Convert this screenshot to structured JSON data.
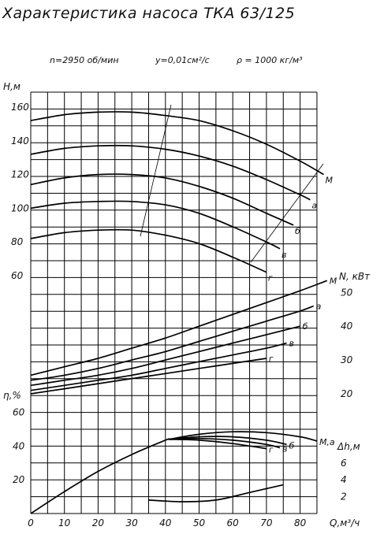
{
  "header": {
    "title": "Характеристика насоса ТКА 63/125",
    "speed": "n=2950 об/мин",
    "viscosity": "у=0,01см²/с",
    "density": "ρ = 1000 кг/м³"
  },
  "chart_data": {
    "type": "line",
    "xlabel": "Q,м³/ч",
    "x_ticks": [
      "0",
      "10",
      "20",
      "30",
      "40",
      "50",
      "60",
      "70",
      "80"
    ],
    "xlim": [
      0,
      102
    ],
    "grid": true,
    "axes": {
      "H": {
        "label": "Н,м",
        "ticks": [
          "60",
          "80",
          "100",
          "120",
          "140",
          "160"
        ],
        "lim": [
          60,
          160
        ]
      },
      "N": {
        "label": "N, кВт",
        "ticks": [
          "20",
          "30",
          "40",
          "50"
        ],
        "lim": [
          20,
          50
        ]
      },
      "eta": {
        "label": "η,%",
        "ticks": [
          "20",
          "40",
          "60"
        ],
        "lim": [
          0,
          60
        ]
      },
      "dh": {
        "label": "Δh,м",
        "ticks": [
          "2",
          "4",
          "6"
        ],
        "lim": [
          0,
          8
        ]
      }
    },
    "head_curves": [
      {
        "name": "М",
        "x": [
          0,
          10,
          20,
          30,
          40,
          50,
          60,
          70,
          80,
          87
        ],
        "y": [
          152,
          155.5,
          157,
          157,
          155,
          152,
          146,
          138,
          128,
          120
        ]
      },
      {
        "name": "а",
        "x": [
          0,
          10,
          20,
          30,
          40,
          50,
          60,
          70,
          80,
          83
        ],
        "y": [
          132,
          135.5,
          137,
          137,
          135,
          131,
          125,
          117,
          108,
          105
        ]
      },
      {
        "name": "б",
        "x": [
          0,
          10,
          20,
          30,
          40,
          50,
          60,
          70,
          78
        ],
        "y": [
          114,
          118,
          120,
          120,
          118,
          113,
          106,
          97,
          90
        ]
      },
      {
        "name": "в",
        "x": [
          0,
          10,
          20,
          30,
          40,
          50,
          60,
          70,
          74
        ],
        "y": [
          100,
          103,
          104,
          104,
          102,
          97,
          89,
          80,
          76
        ]
      },
      {
        "name": "г",
        "x": [
          0,
          10,
          20,
          30,
          40,
          50,
          60,
          70
        ],
        "y": [
          82,
          85.5,
          87,
          87,
          84,
          79,
          71,
          62
        ]
      }
    ],
    "power_curves": [
      {
        "name": "М",
        "x": [
          0,
          10,
          20,
          30,
          40,
          50,
          60,
          70,
          80,
          88
        ],
        "y": [
          25.5,
          28,
          30.5,
          33.5,
          36.5,
          40,
          43.5,
          47,
          50.5,
          53.5
        ]
      },
      {
        "name": "а",
        "x": [
          0,
          10,
          20,
          30,
          40,
          50,
          60,
          70,
          80,
          84
        ],
        "y": [
          24,
          25.5,
          27.5,
          30,
          32.5,
          35.5,
          38.5,
          41.5,
          44.5,
          46
        ]
      },
      {
        "name": "б",
        "x": [
          0,
          10,
          20,
          30,
          40,
          50,
          60,
          70,
          80
        ],
        "y": [
          22.5,
          24,
          25.5,
          27.5,
          30,
          32.5,
          35,
          37.5,
          40
        ]
      },
      {
        "name": "в",
        "x": [
          0,
          10,
          20,
          30,
          40,
          50,
          60,
          70,
          76
        ],
        "y": [
          21,
          22.5,
          24,
          25.5,
          27.5,
          29.5,
          31.5,
          33.5,
          35
        ]
      },
      {
        "name": "г",
        "x": [
          0,
          10,
          20,
          30,
          40,
          50,
          60,
          70
        ],
        "y": [
          20,
          21.5,
          23,
          24.5,
          26,
          27.5,
          29,
          30.5
        ]
      }
    ],
    "efficiency_curves": [
      {
        "name": "base",
        "x": [
          0,
          10,
          20,
          30,
          40,
          41
        ],
        "y": [
          0,
          13,
          25,
          35,
          43.5,
          44
        ]
      },
      {
        "name": "М,а",
        "x": [
          41,
          50,
          60,
          70,
          80,
          85
        ],
        "y": [
          44,
          47,
          48.5,
          48,
          45.5,
          43
        ]
      },
      {
        "name": "б",
        "x": [
          41,
          50,
          60,
          70,
          76
        ],
        "y": [
          44,
          45.5,
          45.5,
          43.5,
          41
        ]
      },
      {
        "name": "в",
        "x": [
          41,
          50,
          60,
          70,
          74
        ],
        "y": [
          44,
          44.5,
          43.5,
          41,
          39
        ]
      },
      {
        "name": "г",
        "x": [
          41,
          50,
          60,
          70
        ],
        "y": [
          44,
          43.5,
          41.5,
          38.5
        ]
      }
    ],
    "npsh_curve": {
      "name": "Δh",
      "x": [
        35,
        45,
        55,
        65,
        75
      ],
      "y": [
        1.6,
        1.4,
        1.6,
        2.5,
        3.4
      ]
    },
    "curve_labels": {
      "head": [
        "М",
        "а",
        "б",
        "в",
        "г"
      ],
      "power": [
        "М",
        "а",
        "б",
        "в",
        "г"
      ],
      "efficiency": [
        "М,а",
        "б",
        "в",
        "г"
      ]
    }
  }
}
